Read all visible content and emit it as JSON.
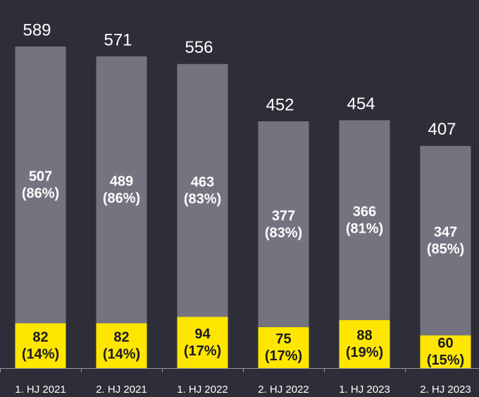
{
  "chart_data": {
    "type": "bar",
    "stacked": true,
    "categories": [
      "1. HJ 2021",
      "2. HJ 2021",
      "1. HJ 2022",
      "2. HJ 2022",
      "1. HJ 2023",
      "2. HJ 2023"
    ],
    "series": [
      {
        "color": "#ffe600",
        "label_color": "#1a1a24",
        "values": [
          82,
          82,
          94,
          75,
          88,
          60
        ],
        "share_labels": [
          "(14%)",
          "(14%)",
          "(17%)",
          "(17%)",
          "(19%)",
          "(15%)"
        ]
      },
      {
        "color": "#747480",
        "label_color": "#ffffff",
        "values": [
          507,
          489,
          463,
          377,
          366,
          347
        ],
        "share_labels": [
          "(86%)",
          "(86%)",
          "(83%)",
          "(83%)",
          "(81%)",
          "(85%)"
        ]
      }
    ],
    "totals": [
      589,
      571,
      556,
      452,
      454,
      407
    ]
  }
}
